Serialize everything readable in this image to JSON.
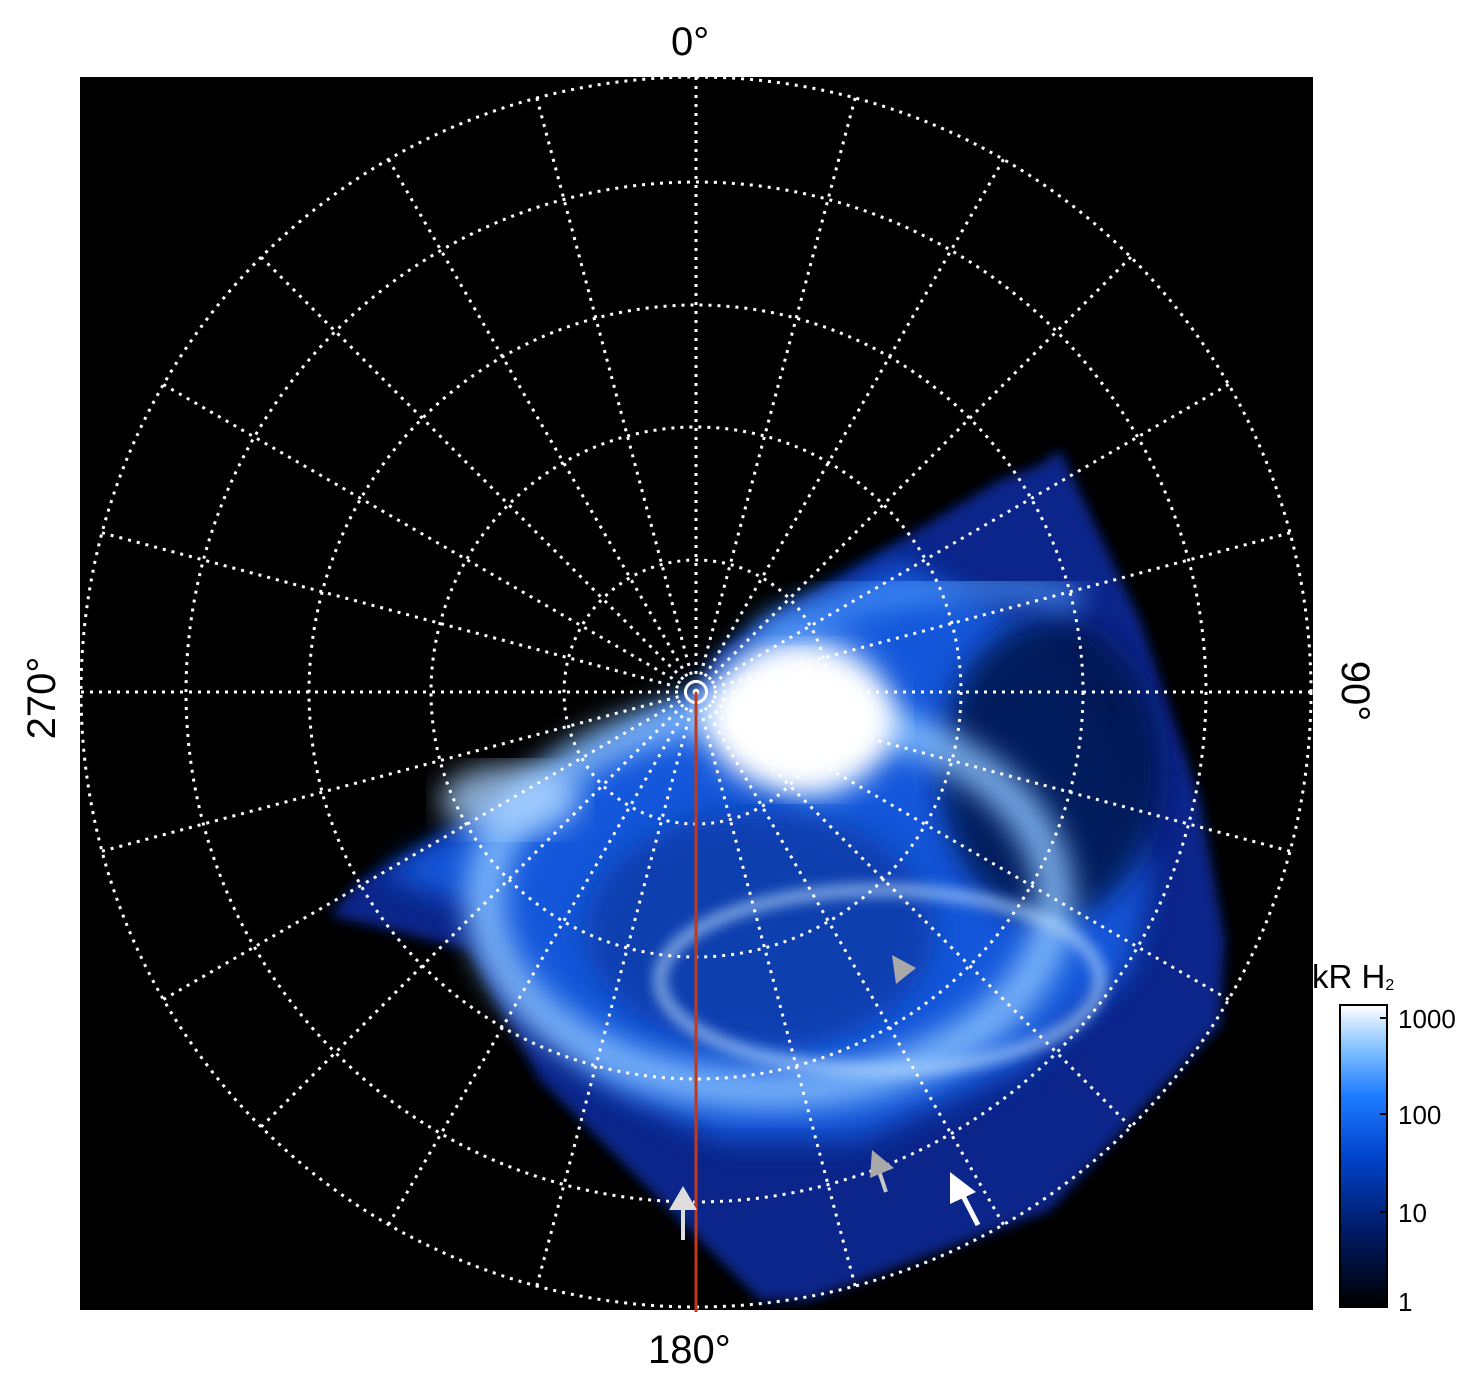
{
  "azimuth_labels": {
    "top": "0°",
    "right": "90°",
    "bottom": "180°",
    "left": "270°"
  },
  "colorbar": {
    "title": "kR H",
    "title_subscript": "2",
    "ticks": [
      "1000",
      "100",
      "10",
      "1"
    ],
    "scale": "log",
    "colors": [
      "#000000",
      "#001a66",
      "#0044cc",
      "#1e7dff",
      "#7fbfff",
      "#ffffff"
    ]
  },
  "background_color": "#000000",
  "grid_color": "#ffffff",
  "meridian_line_color": "#c0391b",
  "arrows": [
    {
      "color": "#c8c8c8",
      "name": "gray-arrow-upper"
    },
    {
      "color": "#c8c8c8",
      "name": "gray-arrow-lower"
    },
    {
      "color": "#ffffff",
      "name": "white-arrow"
    },
    {
      "color": "#dddddd",
      "name": "light-arrow-bottom"
    }
  ]
}
